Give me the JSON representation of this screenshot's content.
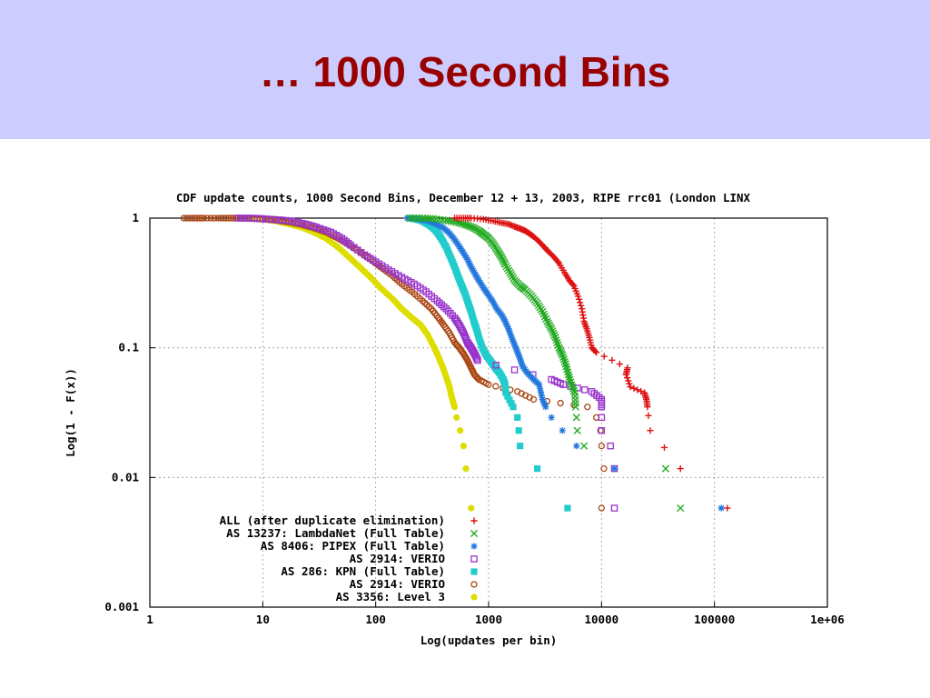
{
  "slide": {
    "title": "… 1000 Second Bins"
  },
  "chart_data": {
    "type": "scatter",
    "title": "CDF update counts, 1000 Second Bins, December 12 + 13, 2003,  RIPE rrc01 (London LINX",
    "xlabel": "Log(updates per bin)",
    "ylabel": "Log(1 - F(x))",
    "xscale": "log",
    "yscale": "log",
    "xlim": [
      1,
      1000000
    ],
    "ylim": [
      0.001,
      1
    ],
    "grid": true,
    "legend_position": "bottom-left",
    "x_ticks": [
      {
        "value": 1,
        "label": "1"
      },
      {
        "value": 10,
        "label": "10"
      },
      {
        "value": 100,
        "label": "100"
      },
      {
        "value": 1000,
        "label": "1000"
      },
      {
        "value": 10000,
        "label": "10000"
      },
      {
        "value": 100000,
        "label": "100000"
      },
      {
        "value": 1000000,
        "label": "1e+06"
      }
    ],
    "y_ticks": [
      {
        "value": 0.001,
        "label": "0.001"
      },
      {
        "value": 0.01,
        "label": "0.01"
      },
      {
        "value": 0.1,
        "label": "0.1"
      },
      {
        "value": 1,
        "label": "1"
      }
    ],
    "series": [
      {
        "name": "ALL (after duplicate elimination)",
        "color": "#dd1111",
        "marker": "plus",
        "points": [
          [
            500,
            1
          ],
          [
            600,
            1
          ],
          [
            700,
            1
          ],
          [
            900,
            0.98
          ],
          [
            1100,
            0.95
          ],
          [
            1300,
            0.92
          ],
          [
            1500,
            0.9
          ],
          [
            1700,
            0.86
          ],
          [
            1900,
            0.83
          ],
          [
            2100,
            0.8
          ],
          [
            2300,
            0.76
          ],
          [
            2500,
            0.72
          ],
          [
            2800,
            0.66
          ],
          [
            3100,
            0.6
          ],
          [
            3400,
            0.55
          ],
          [
            3800,
            0.5
          ],
          [
            4200,
            0.45
          ],
          [
            4700,
            0.38
          ],
          [
            5200,
            0.33
          ],
          [
            5700,
            0.3
          ],
          [
            6200,
            0.25
          ],
          [
            6700,
            0.2
          ],
          [
            7000,
            0.16
          ],
          [
            7400,
            0.14
          ],
          [
            7800,
            0.12
          ],
          [
            8200,
            0.1
          ],
          [
            9000,
            0.092
          ],
          [
            17000,
            0.07
          ],
          [
            16500,
            0.062
          ],
          [
            18000,
            0.05
          ],
          [
            24000,
            0.045
          ],
          [
            25000,
            0.04
          ],
          [
            25500,
            0.035
          ],
          [
            26000,
            0.03
          ],
          [
            27000,
            0.023
          ],
          [
            36000,
            0.017
          ],
          [
            50000,
            0.0117
          ],
          [
            130000,
            0.0058
          ]
        ]
      },
      {
        "name": "AS 13237: LambdaNet (Full Table)",
        "color": "#22aa22",
        "marker": "cross",
        "points": [
          [
            200,
            1
          ],
          [
            260,
            1
          ],
          [
            320,
            0.99
          ],
          [
            420,
            0.96
          ],
          [
            520,
            0.93
          ],
          [
            620,
            0.89
          ],
          [
            720,
            0.85
          ],
          [
            820,
            0.8
          ],
          [
            900,
            0.75
          ],
          [
            1000,
            0.7
          ],
          [
            1100,
            0.63
          ],
          [
            1200,
            0.56
          ],
          [
            1300,
            0.5
          ],
          [
            1400,
            0.44
          ],
          [
            1550,
            0.38
          ],
          [
            1700,
            0.33
          ],
          [
            1900,
            0.3
          ],
          [
            2100,
            0.28
          ],
          [
            2400,
            0.25
          ],
          [
            2700,
            0.22
          ],
          [
            3000,
            0.19
          ],
          [
            3300,
            0.16
          ],
          [
            3600,
            0.14
          ],
          [
            3900,
            0.12
          ],
          [
            4200,
            0.1
          ],
          [
            4500,
            0.088
          ],
          [
            4800,
            0.075
          ],
          [
            5100,
            0.062
          ],
          [
            5400,
            0.052
          ],
          [
            5800,
            0.045
          ],
          [
            5900,
            0.035
          ],
          [
            6000,
            0.029
          ],
          [
            6100,
            0.023
          ],
          [
            7000,
            0.0175
          ],
          [
            37000,
            0.0117
          ],
          [
            50000,
            0.0058
          ]
        ]
      },
      {
        "name": "AS 8406: PIPEX (Full Table)",
        "color": "#2277dd",
        "marker": "star",
        "points": [
          [
            190,
            1
          ],
          [
            240,
            0.98
          ],
          [
            290,
            0.95
          ],
          [
            340,
            0.9
          ],
          [
            390,
            0.85
          ],
          [
            440,
            0.78
          ],
          [
            490,
            0.7
          ],
          [
            540,
            0.62
          ],
          [
            590,
            0.55
          ],
          [
            650,
            0.48
          ],
          [
            700,
            0.42
          ],
          [
            760,
            0.37
          ],
          [
            820,
            0.33
          ],
          [
            900,
            0.29
          ],
          [
            980,
            0.26
          ],
          [
            1080,
            0.23
          ],
          [
            1180,
            0.2
          ],
          [
            1300,
            0.18
          ],
          [
            1400,
            0.16
          ],
          [
            1500,
            0.14
          ],
          [
            1600,
            0.12
          ],
          [
            1700,
            0.105
          ],
          [
            1800,
            0.093
          ],
          [
            1900,
            0.082
          ],
          [
            2000,
            0.072
          ],
          [
            2200,
            0.064
          ],
          [
            2500,
            0.057
          ],
          [
            2800,
            0.052
          ],
          [
            3000,
            0.04
          ],
          [
            3200,
            0.035
          ],
          [
            3600,
            0.029
          ],
          [
            4500,
            0.023
          ],
          [
            6000,
            0.0175
          ],
          [
            13000,
            0.0117
          ],
          [
            115000,
            0.0058
          ]
        ]
      },
      {
        "name": "AS 2914: VERIO",
        "color": "#9933cc",
        "marker": "square",
        "points": [
          [
            6,
            1
          ],
          [
            8,
            1
          ],
          [
            10,
            0.99
          ],
          [
            14,
            0.97
          ],
          [
            18,
            0.95
          ],
          [
            24,
            0.9
          ],
          [
            30,
            0.85
          ],
          [
            40,
            0.78
          ],
          [
            50,
            0.7
          ],
          [
            60,
            0.62
          ],
          [
            80,
            0.52
          ],
          [
            100,
            0.46
          ],
          [
            130,
            0.4
          ],
          [
            170,
            0.35
          ],
          [
            220,
            0.31
          ],
          [
            280,
            0.27
          ],
          [
            350,
            0.23
          ],
          [
            420,
            0.2
          ],
          [
            500,
            0.17
          ],
          [
            550,
            0.15
          ],
          [
            600,
            0.13
          ],
          [
            650,
            0.11
          ],
          [
            700,
            0.1
          ],
          [
            750,
            0.09
          ],
          [
            800,
            0.08
          ],
          [
            3600,
            0.057
          ],
          [
            4600,
            0.052
          ],
          [
            8200,
            0.046
          ],
          [
            10000,
            0.04
          ],
          [
            10000,
            0.035
          ],
          [
            10000,
            0.029
          ],
          [
            10000,
            0.023
          ],
          [
            12000,
            0.0175
          ],
          [
            13000,
            0.0117
          ],
          [
            13000,
            0.0058
          ]
        ]
      },
      {
        "name": "AS 286: KPN (Full Table)",
        "color": "#22cccc",
        "marker": "filled-square",
        "points": [
          [
            200,
            1
          ],
          [
            230,
            0.98
          ],
          [
            260,
            0.95
          ],
          [
            290,
            0.9
          ],
          [
            320,
            0.85
          ],
          [
            350,
            0.78
          ],
          [
            380,
            0.7
          ],
          [
            420,
            0.6
          ],
          [
            460,
            0.5
          ],
          [
            500,
            0.42
          ],
          [
            540,
            0.35
          ],
          [
            580,
            0.3
          ],
          [
            620,
            0.26
          ],
          [
            660,
            0.22
          ],
          [
            700,
            0.19
          ],
          [
            740,
            0.16
          ],
          [
            780,
            0.14
          ],
          [
            820,
            0.12
          ],
          [
            880,
            0.1
          ],
          [
            950,
            0.088
          ],
          [
            1050,
            0.078
          ],
          [
            1150,
            0.07
          ],
          [
            1250,
            0.064
          ],
          [
            1350,
            0.057
          ],
          [
            1400,
            0.052
          ],
          [
            1420,
            0.045
          ],
          [
            1650,
            0.035
          ],
          [
            1800,
            0.029
          ],
          [
            1850,
            0.023
          ],
          [
            1900,
            0.0175
          ],
          [
            2700,
            0.0117
          ],
          [
            5000,
            0.0058
          ]
        ]
      },
      {
        "name": "AS 2914: VERIO",
        "color": "#aa4411",
        "marker": "circle",
        "points": [
          [
            2,
            1
          ],
          [
            2.5,
            1
          ],
          [
            3,
            1
          ],
          [
            4,
            1
          ],
          [
            5,
            1
          ],
          [
            6,
            1
          ],
          [
            8,
            0.99
          ],
          [
            10,
            0.98
          ],
          [
            13,
            0.96
          ],
          [
            17,
            0.93
          ],
          [
            22,
            0.89
          ],
          [
            28,
            0.84
          ],
          [
            36,
            0.78
          ],
          [
            46,
            0.7
          ],
          [
            58,
            0.62
          ],
          [
            72,
            0.55
          ],
          [
            90,
            0.48
          ],
          [
            110,
            0.42
          ],
          [
            140,
            0.36
          ],
          [
            170,
            0.31
          ],
          [
            210,
            0.27
          ],
          [
            260,
            0.23
          ],
          [
            310,
            0.2
          ],
          [
            360,
            0.17
          ],
          [
            400,
            0.15
          ],
          [
            450,
            0.13
          ],
          [
            500,
            0.11
          ],
          [
            550,
            0.1
          ],
          [
            600,
            0.09
          ],
          [
            650,
            0.08
          ],
          [
            700,
            0.07
          ],
          [
            750,
            0.062
          ],
          [
            820,
            0.057
          ],
          [
            1000,
            0.052
          ],
          [
            1800,
            0.046
          ],
          [
            2500,
            0.04
          ],
          [
            7500,
            0.035
          ],
          [
            9000,
            0.029
          ],
          [
            9800,
            0.023
          ],
          [
            10000,
            0.0175
          ],
          [
            10500,
            0.0117
          ],
          [
            10000,
            0.0058
          ]
        ]
      },
      {
        "name": "AS 3356: Level 3",
        "color": "#dddd00",
        "marker": "circle-filled",
        "points": [
          [
            8,
            1
          ],
          [
            10,
            0.98
          ],
          [
            13,
            0.95
          ],
          [
            17,
            0.9
          ],
          [
            22,
            0.85
          ],
          [
            28,
            0.78
          ],
          [
            36,
            0.7
          ],
          [
            46,
            0.6
          ],
          [
            58,
            0.5
          ],
          [
            72,
            0.42
          ],
          [
            90,
            0.35
          ],
          [
            110,
            0.29
          ],
          [
            140,
            0.24
          ],
          [
            170,
            0.2
          ],
          [
            210,
            0.17
          ],
          [
            250,
            0.15
          ],
          [
            290,
            0.125
          ],
          [
            330,
            0.1
          ],
          [
            360,
            0.085
          ],
          [
            390,
            0.072
          ],
          [
            420,
            0.06
          ],
          [
            450,
            0.05
          ],
          [
            470,
            0.042
          ],
          [
            500,
            0.035
          ],
          [
            520,
            0.029
          ],
          [
            560,
            0.023
          ],
          [
            600,
            0.0175
          ],
          [
            630,
            0.0117
          ],
          [
            700,
            0.0058
          ]
        ]
      }
    ]
  }
}
